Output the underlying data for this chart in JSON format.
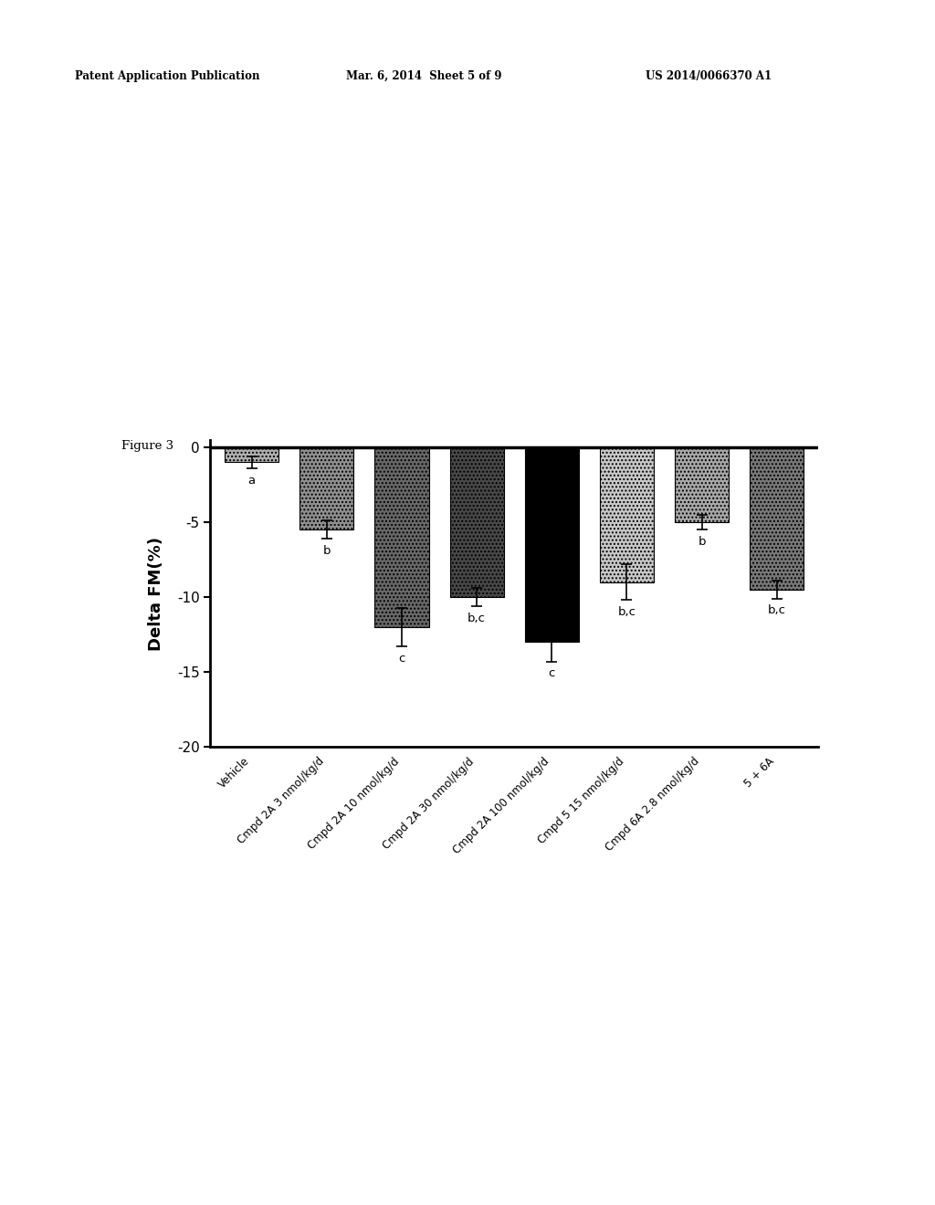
{
  "categories": [
    "Vehicle",
    "Cmpd 2A 3 nmol/kg/d",
    "Cmpd 2A 10 nmol/kg/d",
    "Cmpd 2A 30 nmol/kg/d",
    "Cmpd 2A 100 nmol/kg/d",
    "Cmpd 5 15 nmol/kg/d",
    "Cmpd 6A 2.8 nmol/kg/d",
    "5 + 6A"
  ],
  "values": [
    -1.0,
    -5.5,
    -12.0,
    -10.0,
    -13.0,
    -9.0,
    -5.0,
    -9.5
  ],
  "errors": [
    0.4,
    0.6,
    1.3,
    0.6,
    1.3,
    1.2,
    0.5,
    0.6
  ],
  "bar_colors": [
    "#b0b0b0",
    "#909090",
    "#686868",
    "#484848",
    "#000000",
    "#c8c8c8",
    "#a8a8a8",
    "#787878"
  ],
  "bar_hatches": [
    "....",
    "....",
    "....",
    "....",
    null,
    "....",
    "....",
    "...."
  ],
  "labels": [
    "a",
    "b",
    "c",
    "b,c",
    "c",
    "b,c",
    "b",
    "b,c"
  ],
  "ylabel": "Delta FM(%)",
  "ylim": [
    -20,
    0.5
  ],
  "yticks": [
    0,
    -5,
    -10,
    -15,
    -20
  ],
  "figure_title": "Figure 3",
  "header_left": "Patent Application Publication",
  "header_mid": "Mar. 6, 2014  Sheet 5 of 9",
  "header_right": "US 2014/0066370 A1"
}
